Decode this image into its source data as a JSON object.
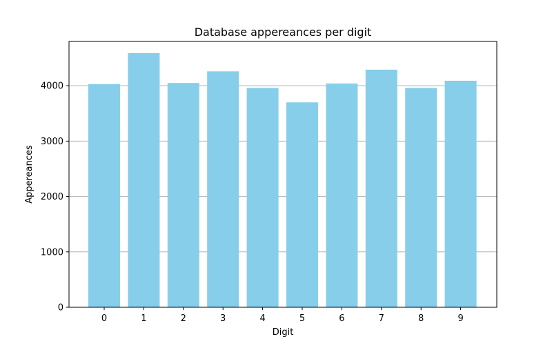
{
  "colors": {
    "bar": "#87ceeb",
    "grid": "#b0b0b0",
    "axis": "#000000",
    "background": "#ffffff"
  },
  "chart_data": {
    "type": "bar",
    "title": "Database appereances per digit",
    "xlabel": "Digit",
    "ylabel": "Appereances",
    "categories": [
      "0",
      "1",
      "2",
      "3",
      "4",
      "5",
      "6",
      "7",
      "8",
      "9"
    ],
    "values": [
      4030,
      4590,
      4050,
      4260,
      3960,
      3700,
      4040,
      4290,
      3960,
      4090
    ],
    "ylim": [
      0,
      4800
    ],
    "yticks": [
      0,
      1000,
      2000,
      3000,
      4000
    ],
    "ytick_labels": [
      "0",
      "1000",
      "2000",
      "3000",
      "4000"
    ],
    "grid": "y-major",
    "legend": "none"
  }
}
